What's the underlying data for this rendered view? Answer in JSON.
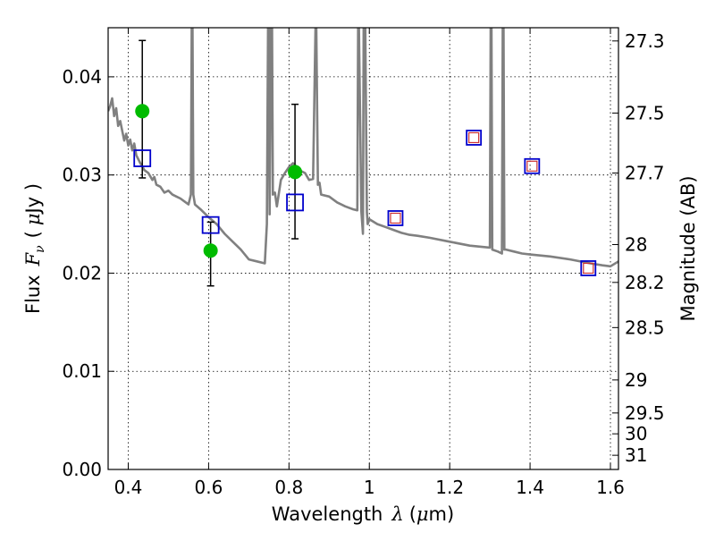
{
  "chart_data": {
    "type": "scatter",
    "xlabel": {
      "prefix": "Wavelength",
      "symbol": "λ",
      "unit_open": "(",
      "unit_mu": "μ",
      "unit_rest": "m)"
    },
    "ylabel": {
      "prefix": "Flux",
      "symbol": "F",
      "subscript": "ν",
      "unit_open": "(",
      "unit_mu": "μ",
      "unit_rest": "Jy )"
    },
    "y2label": "Magnitude (AB)",
    "xlim": [
      0.35,
      1.62
    ],
    "ylim": [
      0.0,
      0.045
    ],
    "grid": true,
    "x_ticks": [
      {
        "value": 0.4,
        "label": "0.4"
      },
      {
        "value": 0.6,
        "label": "0.6"
      },
      {
        "value": 0.8,
        "label": "0.8"
      },
      {
        "value": 1.0,
        "label": "1"
      },
      {
        "value": 1.2,
        "label": "1.2"
      },
      {
        "value": 1.4,
        "label": "1.4"
      },
      {
        "value": 1.6,
        "label": "1.6"
      }
    ],
    "y_ticks": [
      {
        "value": 0.0,
        "label": "0.00"
      },
      {
        "value": 0.01,
        "label": "0.01"
      },
      {
        "value": 0.02,
        "label": "0.02"
      },
      {
        "value": 0.03,
        "label": "0.03"
      },
      {
        "value": 0.04,
        "label": "0.04"
      }
    ],
    "y2_ticks": [
      {
        "mag": 27.3,
        "label": "27.3"
      },
      {
        "mag": 27.5,
        "label": "27.5"
      },
      {
        "mag": 27.7,
        "label": "27.7"
      },
      {
        "mag": 28.0,
        "label": "28"
      },
      {
        "mag": 28.2,
        "label": "28.2"
      },
      {
        "mag": 28.5,
        "label": "28.5"
      },
      {
        "mag": 29.0,
        "label": "29"
      },
      {
        "mag": 29.5,
        "label": "29.5"
      },
      {
        "mag": 30.0,
        "label": "30"
      },
      {
        "mag": 31.0,
        "label": "31"
      }
    ],
    "colors": {
      "model": "#808080",
      "observed": "#00bb00",
      "model_photometry": "#0000cc",
      "model_photometry_inner": "#cc3333",
      "errorbar": "#000000"
    },
    "model_spectrum": {
      "x": [
        0.35,
        0.355,
        0.36,
        0.365,
        0.37,
        0.375,
        0.38,
        0.39,
        0.395,
        0.4,
        0.405,
        0.41,
        0.415,
        0.42,
        0.43,
        0.44,
        0.45,
        0.46,
        0.465,
        0.47,
        0.48,
        0.49,
        0.5,
        0.51,
        0.52,
        0.53,
        0.54,
        0.55,
        0.556,
        0.558,
        0.56,
        0.562,
        0.566,
        0.58,
        0.6,
        0.62,
        0.64,
        0.66,
        0.68,
        0.7,
        0.72,
        0.74,
        0.745,
        0.748,
        0.75,
        0.752,
        0.755,
        0.758,
        0.76,
        0.765,
        0.77,
        0.78,
        0.79,
        0.8,
        0.81,
        0.82,
        0.83,
        0.84,
        0.85,
        0.86,
        0.866,
        0.868,
        0.872,
        0.876,
        0.88,
        0.9,
        0.92,
        0.94,
        0.96,
        0.97,
        0.972,
        0.974,
        0.98,
        0.984,
        0.986,
        0.99,
        0.994,
        0.996,
        1.0,
        1.02,
        1.04,
        1.06,
        1.08,
        1.1,
        1.12,
        1.15,
        1.2,
        1.25,
        1.3,
        1.302,
        1.304,
        1.306,
        1.32,
        1.33,
        1.332,
        1.334,
        1.336,
        1.34,
        1.36,
        1.38,
        1.4,
        1.45,
        1.5,
        1.55,
        1.58,
        1.6,
        1.62
      ],
      "y": [
        0.0365,
        0.037,
        0.0378,
        0.036,
        0.0368,
        0.035,
        0.0355,
        0.0335,
        0.0342,
        0.033,
        0.0336,
        0.0325,
        0.0332,
        0.032,
        0.0312,
        0.0305,
        0.0302,
        0.0295,
        0.0298,
        0.029,
        0.0288,
        0.0282,
        0.0284,
        0.028,
        0.0278,
        0.0276,
        0.0273,
        0.027,
        0.028,
        0.045,
        0.045,
        0.028,
        0.027,
        0.0265,
        0.0257,
        0.025,
        0.024,
        0.0232,
        0.0224,
        0.0214,
        0.0212,
        0.021,
        0.025,
        0.045,
        0.045,
        0.026,
        0.045,
        0.045,
        0.028,
        0.0282,
        0.0268,
        0.0295,
        0.0302,
        0.0308,
        0.0312,
        0.0308,
        0.0304,
        0.0302,
        0.0295,
        0.0296,
        0.045,
        0.045,
        0.029,
        0.0292,
        0.028,
        0.0278,
        0.0272,
        0.0268,
        0.0265,
        0.0264,
        0.045,
        0.045,
        0.0263,
        0.024,
        0.045,
        0.045,
        0.0262,
        0.025,
        0.0255,
        0.025,
        0.0247,
        0.0244,
        0.0241,
        0.0239,
        0.0238,
        0.0236,
        0.0232,
        0.0228,
        0.0226,
        0.045,
        0.045,
        0.0224,
        0.0222,
        0.022,
        0.045,
        0.045,
        0.0224,
        0.0224,
        0.0222,
        0.022,
        0.0219,
        0.0217,
        0.0214,
        0.021,
        0.0208,
        0.0207,
        0.0212
      ]
    },
    "observed_points": [
      {
        "x": 0.435,
        "y": 0.0365,
        "err": [
          0.0297,
          0.0437
        ]
      },
      {
        "x": 0.605,
        "y": 0.0223,
        "err": [
          0.0187,
          0.0252
        ]
      },
      {
        "x": 0.815,
        "y": 0.0303,
        "err": [
          0.0235,
          0.0372
        ]
      }
    ],
    "model_photometry": [
      {
        "x": 0.435,
        "y": 0.0317,
        "inner": false
      },
      {
        "x": 0.605,
        "y": 0.0249,
        "inner": false
      },
      {
        "x": 0.815,
        "y": 0.0272,
        "inner": false
      },
      {
        "x": 1.065,
        "y": 0.0256,
        "inner": true
      },
      {
        "x": 1.26,
        "y": 0.0338,
        "inner": true
      },
      {
        "x": 1.405,
        "y": 0.0309,
        "inner": true
      },
      {
        "x": 1.545,
        "y": 0.0205,
        "inner": true
      }
    ]
  }
}
